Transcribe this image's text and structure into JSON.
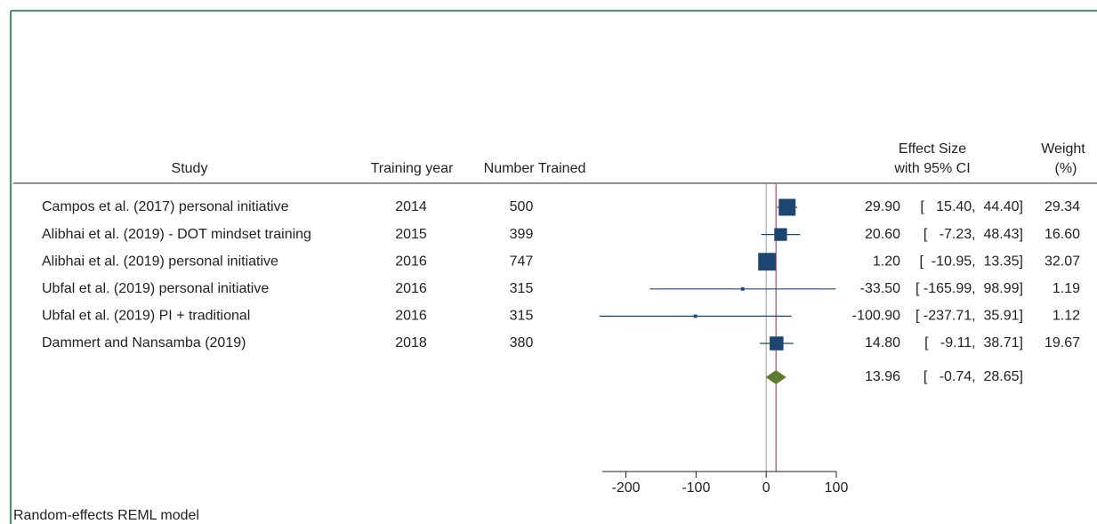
{
  "footer": "Random-effects REML model",
  "chart_data": {
    "type": "forest",
    "headers": {
      "study": "Study",
      "year": "Training year",
      "trained": "Number Trained",
      "effect": [
        "Effect Size",
        "with 95% CI"
      ],
      "weight": [
        "Weight",
        "(%)"
      ]
    },
    "studies": [
      "Campos et al. (2017) personal initiative",
      "Alibhai et al. (2019) - DOT mindset training",
      "Alibhai et al. (2019) personal initiative",
      "Ubfal et al. (2019) personal initiative",
      "Ubfal et al. (2019) PI + traditional",
      "Dammert and Nansamba (2019)"
    ],
    "years": [
      2014,
      2015,
      2016,
      2016,
      2016,
      2018
    ],
    "trained": [
      500,
      399,
      747,
      315,
      315,
      380
    ],
    "values": [
      29.9,
      20.6,
      1.2,
      -33.5,
      -100.9,
      14.8
    ],
    "value_labels": [
      "29.90",
      "20.60",
      "1.20",
      "-33.50",
      "-100.90",
      "14.80"
    ],
    "ci_low": [
      15.4,
      -7.23,
      -10.95,
      -165.99,
      -237.71,
      -9.11
    ],
    "ci_high": [
      44.4,
      48.43,
      13.35,
      98.99,
      35.91,
      38.71
    ],
    "ci_labels": [
      "[   15.40,  44.40]",
      "[   -7.23,  48.43]",
      "[  -10.95,  13.35]",
      "[ -165.99,  98.99]",
      "[ -237.71,  35.91]",
      "[   -9.11,  38.71]"
    ],
    "weights": [
      29.34,
      16.6,
      32.07,
      1.19,
      1.12,
      19.67
    ],
    "weight_labels": [
      "29.34",
      "16.60",
      "32.07",
      "1.19",
      "1.12",
      "19.67"
    ],
    "overall": {
      "value": 13.96,
      "value_label": "13.96",
      "ci_low": -0.74,
      "ci_high": 28.65,
      "ci_label": "[   -0.74,  28.65]"
    },
    "xlim": [
      -240,
      100
    ],
    "xticks": [
      -200,
      -100,
      0,
      100
    ],
    "null_line": 0,
    "colors": {
      "marker": "#1c4670",
      "diamond": "#5e7b34",
      "overall_line": "#a3234d",
      "null_line": "#9a9a9a"
    }
  }
}
